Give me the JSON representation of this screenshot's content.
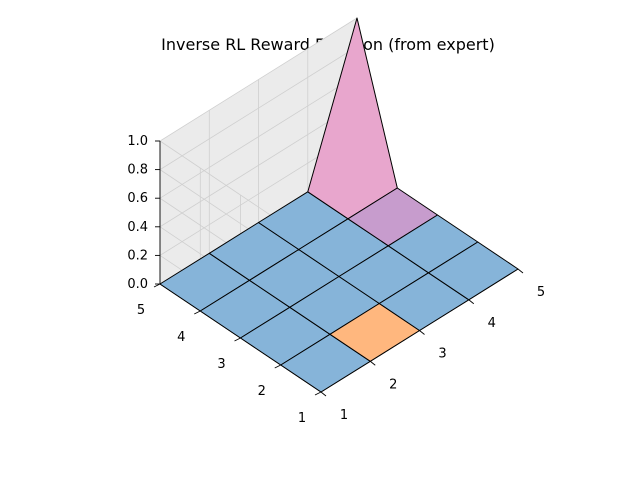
{
  "chart_data": {
    "type": "surface3d",
    "title": "Inverse RL Reward Function (from expert)",
    "xlabel": "",
    "ylabel": "",
    "zlabel": "",
    "x_ticks": [
      1,
      2,
      3,
      4,
      5
    ],
    "y_ticks": [
      1,
      2,
      3,
      4,
      5
    ],
    "z_ticks": [
      "0.0",
      "0.2",
      "0.4",
      "0.6",
      "0.8",
      "1.0"
    ],
    "xlim": [
      1,
      5
    ],
    "ylim": [
      1,
      5
    ],
    "zlim": [
      0,
      1
    ],
    "grid": true,
    "x": [
      1,
      2,
      3,
      4,
      5
    ],
    "y": [
      1,
      2,
      3,
      4,
      5
    ],
    "z": [
      [
        0,
        0,
        0,
        0,
        0
      ],
      [
        0,
        0,
        0,
        0,
        0
      ],
      [
        0,
        0,
        0,
        0,
        0
      ],
      [
        0,
        0,
        0,
        0,
        0
      ],
      [
        0,
        0,
        0,
        0,
        1
      ]
    ],
    "face_colors": {
      "default": "#86b4d9",
      "x2_y1": "#ffb77e",
      "x4_y3": "#c79ccd",
      "x4_y4": "#e8a6cd",
      "x5_y4": "#45c6dd",
      "x4_y5": "#82d9e5"
    },
    "edge_color": "#000000"
  }
}
